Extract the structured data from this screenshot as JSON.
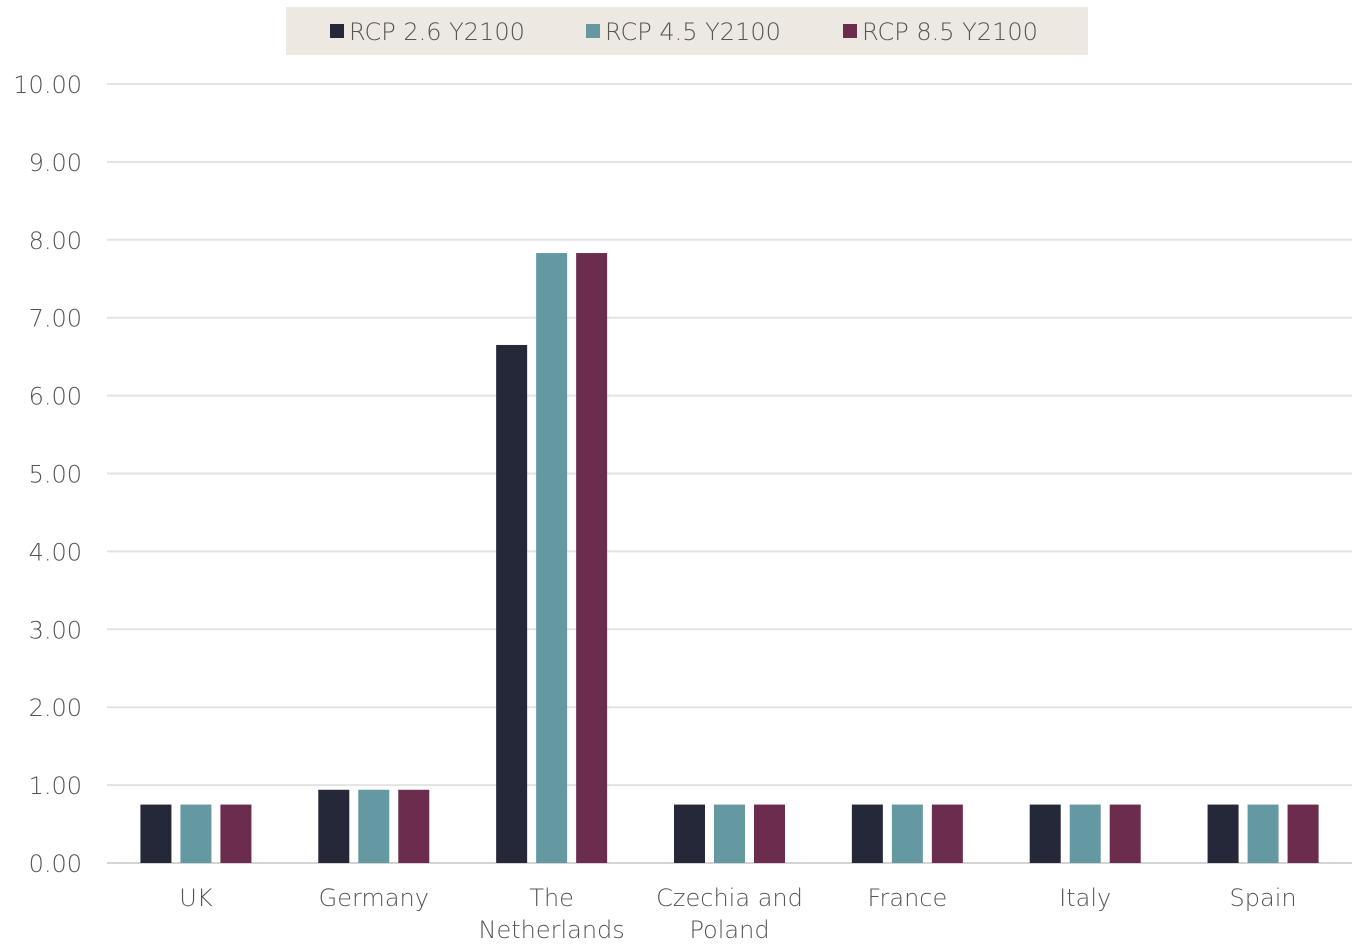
{
  "chart_data": {
    "type": "bar",
    "categories": [
      [
        "UK"
      ],
      [
        "Germany"
      ],
      [
        "The",
        "Netherlands"
      ],
      [
        "Czechia and",
        "Poland"
      ],
      [
        "France"
      ],
      [
        "Italy"
      ],
      [
        "Spain"
      ]
    ],
    "series": [
      {
        "name": "RCP 2.6 Y2100",
        "color": "#252839",
        "values": [
          0.75,
          0.94,
          6.65,
          0.75,
          0.75,
          0.75,
          0.75
        ]
      },
      {
        "name": "RCP 4.5 Y2100",
        "color": "#6599a2",
        "values": [
          0.75,
          0.94,
          7.83,
          0.75,
          0.75,
          0.75,
          0.75
        ]
      },
      {
        "name": "RCP 8.5 Y2100",
        "color": "#6b2c4e",
        "values": [
          0.75,
          0.94,
          7.83,
          0.75,
          0.75,
          0.75,
          0.75
        ]
      }
    ],
    "yticks": [
      "0.00",
      "1.00",
      "2.00",
      "3.00",
      "4.00",
      "5.00",
      "6.00",
      "7.00",
      "8.00",
      "9.00",
      "10.00"
    ],
    "ylim": [
      0,
      10
    ],
    "grid": true,
    "legend_position": "top-center",
    "legend_background": "#ede8e2",
    "title": "",
    "xlabel": "",
    "ylabel": ""
  }
}
